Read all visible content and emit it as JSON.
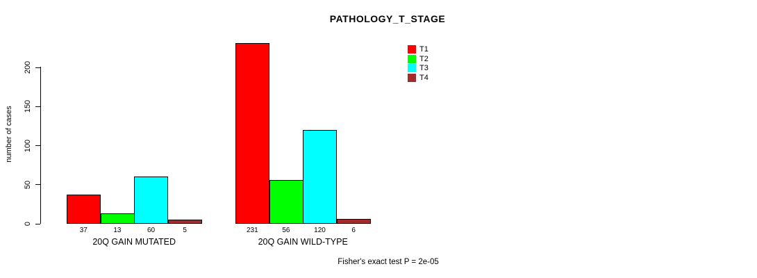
{
  "title": "PATHOLOGY_T_STAGE",
  "footer": "Fisher's exact test P = 2e-05",
  "y_axis": {
    "label": "number of cases",
    "ticks": [
      0,
      50,
      100,
      150,
      200
    ]
  },
  "legend": {
    "position": "top-right",
    "items": [
      {
        "label": "T1",
        "color": "#ff0000"
      },
      {
        "label": "T2",
        "color": "#00ff00"
      },
      {
        "label": "T3",
        "color": "#00ffff"
      },
      {
        "label": "T4",
        "color": "#a52a2a"
      }
    ]
  },
  "chart_data": {
    "type": "bar",
    "title": "PATHOLOGY_T_STAGE",
    "categories": [
      "20Q GAIN MUTATED",
      "20Q GAIN WILD-TYPE"
    ],
    "series": [
      {
        "name": "T1",
        "color": "#ff0000",
        "values": [
          37,
          231
        ]
      },
      {
        "name": "T2",
        "color": "#00ff00",
        "values": [
          13,
          56
        ]
      },
      {
        "name": "T3",
        "color": "#00ffff",
        "values": [
          60,
          120
        ]
      },
      {
        "name": "T4",
        "color": "#a52a2a",
        "values": [
          5,
          6
        ]
      }
    ],
    "bar_value_labels": [
      [
        "37",
        "13",
        "60",
        "5"
      ],
      [
        "231",
        "56",
        "120",
        "6"
      ]
    ],
    "xlabel": "",
    "ylabel": "number of cases",
    "ylim": [
      0,
      235
    ],
    "grid": false,
    "legend_position": "top-right",
    "annotation": "Fisher's exact test P = 2e-05"
  }
}
